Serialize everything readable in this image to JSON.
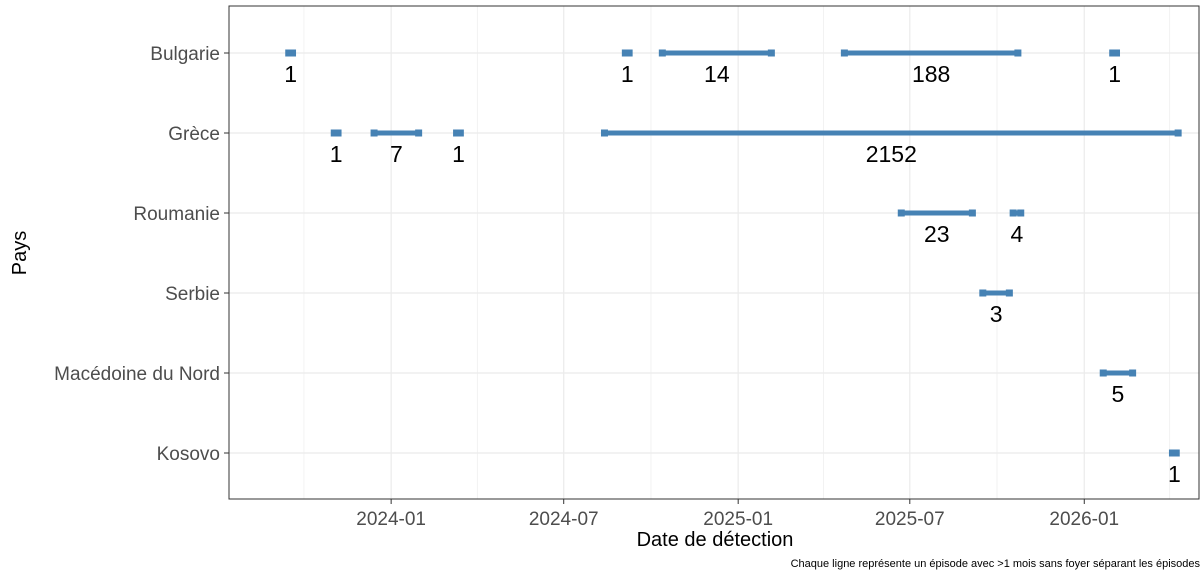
{
  "chart_data": {
    "type": "timeline",
    "xlabel": "Date de détection",
    "ylabel": "Pays",
    "caption": "Chaque ligne représente un épisode avec >1 mois sans foyer séparant les épisodes",
    "categories": [
      "Bulgarie",
      "Grèce",
      "Roumanie",
      "Serbie",
      "Macédoine du Nord",
      "Kosovo"
    ],
    "x_ticks": [
      "2024-01",
      "2024-07",
      "2025-01",
      "2025-07",
      "2026-01"
    ],
    "x_range": [
      "2023-07-14",
      "2026-05-02"
    ],
    "grid": true,
    "color": "#4682B4",
    "episodes": [
      {
        "country": "Bulgarie",
        "start": "2023-09-15",
        "end": "2023-09-19",
        "count": "1"
      },
      {
        "country": "Bulgarie",
        "start": "2024-09-04",
        "end": "2024-09-08",
        "count": "1"
      },
      {
        "country": "Bulgarie",
        "start": "2024-10-13",
        "end": "2025-02-05",
        "count": "14"
      },
      {
        "country": "Bulgarie",
        "start": "2025-04-23",
        "end": "2025-10-23",
        "count": "188"
      },
      {
        "country": "Bulgarie",
        "start": "2026-01-31",
        "end": "2026-02-04",
        "count": "1"
      },
      {
        "country": "Grèce",
        "start": "2023-11-02",
        "end": "2023-11-06",
        "count": "1"
      },
      {
        "country": "Grèce",
        "start": "2023-12-14",
        "end": "2024-01-30",
        "count": "7"
      },
      {
        "country": "Grèce",
        "start": "2024-03-10",
        "end": "2024-03-14",
        "count": "1"
      },
      {
        "country": "Grèce",
        "start": "2024-08-13",
        "end": "2026-04-10",
        "count": "2152"
      },
      {
        "country": "Roumanie",
        "start": "2025-06-22",
        "end": "2025-09-05",
        "count": "23"
      },
      {
        "country": "Roumanie",
        "start": "2025-10-18",
        "end": "2025-10-26",
        "count": "4"
      },
      {
        "country": "Serbie",
        "start": "2025-09-16",
        "end": "2025-10-14",
        "count": "3"
      },
      {
        "country": "Macédoine du Nord",
        "start": "2026-01-21",
        "end": "2026-02-21",
        "count": "5"
      },
      {
        "country": "Kosovo",
        "start": "2026-04-04",
        "end": "2026-04-08",
        "count": "1"
      }
    ]
  }
}
